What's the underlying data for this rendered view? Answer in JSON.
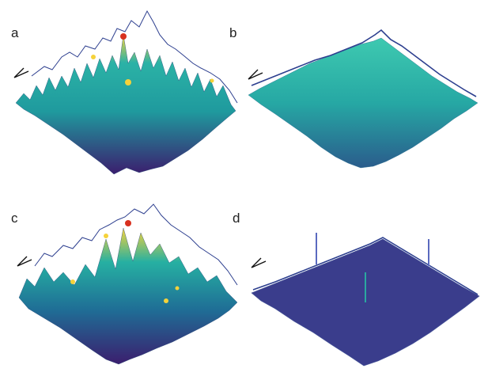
{
  "panels": [
    {
      "label": "a"
    },
    {
      "label": "b"
    },
    {
      "label": "c"
    },
    {
      "label": "d"
    }
  ],
  "colors": {
    "low": "#3b1e6e",
    "mid": "#1f9a9e",
    "high": "#f5d23a",
    "peak": "#d8311f",
    "profile": "#2d3f8f"
  }
}
